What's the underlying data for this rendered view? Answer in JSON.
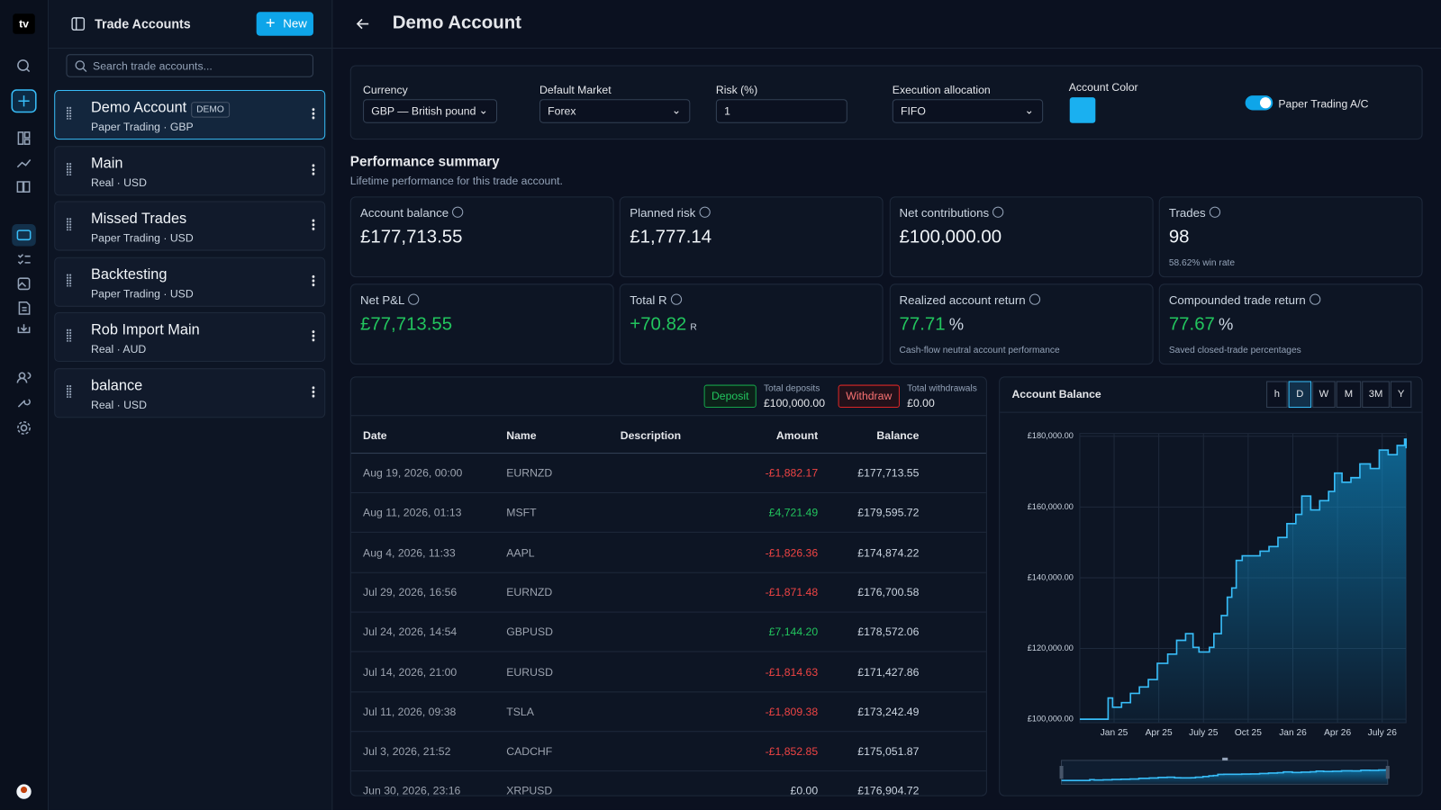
{
  "app": {
    "logo": "tv"
  },
  "accounts_panel": {
    "title": "Trade Accounts",
    "new_button": "New",
    "search_placeholder": "Search trade accounts...",
    "accounts": [
      {
        "name": "Demo Account",
        "badge": "DEMO",
        "meta": "Paper Trading · GBP",
        "selected": true
      },
      {
        "name": "Main",
        "meta": "Real · USD"
      },
      {
        "name": "Missed Trades",
        "meta": "Paper Trading · USD"
      },
      {
        "name": "Backtesting",
        "meta": "Paper Trading · USD"
      },
      {
        "name": "Rob Import Main",
        "meta": "Real · AUD"
      },
      {
        "name": "balance",
        "meta": "Real · USD"
      }
    ]
  },
  "header": {
    "title": "Demo Account"
  },
  "settings": {
    "currency": {
      "label": "Currency",
      "value": "GBP — British pound"
    },
    "default_market": {
      "label": "Default Market",
      "value": "Forex"
    },
    "risk": {
      "label": "Risk (%)",
      "value": "1"
    },
    "execution_allocation": {
      "label": "Execution allocation",
      "value": "FIFO"
    },
    "account_color": {
      "label": "Account Color",
      "color": "#1ab0f0"
    },
    "paper_trading": {
      "label": "Paper Trading A/C",
      "on": true
    }
  },
  "performance": {
    "title": "Performance summary",
    "subtitle": "Lifetime performance for this trade account.",
    "cards": [
      {
        "label": "Account balance",
        "value": "£177,713.55"
      },
      {
        "label": "Planned risk",
        "value": "£1,777.14"
      },
      {
        "label": "Net contributions",
        "value": "£100,000.00"
      },
      {
        "label": "Trades",
        "value": "98",
        "note": "58.62% win rate"
      },
      {
        "label": "Net P&L",
        "value": "£77,713.55",
        "color": "#22c55e"
      },
      {
        "label": "Total R",
        "value": "+70.82",
        "unit": "R",
        "color": "#22c55e"
      },
      {
        "label": "Realized account return",
        "value": "77.71",
        "unit": "%",
        "color": "#22c55e",
        "note": "Cash-flow neutral account performance"
      },
      {
        "label": "Compounded trade return",
        "value": "77.67",
        "unit": "%",
        "color": "#22c55e",
        "note": "Saved closed-trade percentages"
      }
    ]
  },
  "transactions": {
    "deposit_button": "Deposit",
    "total_deposits_label": "Total deposits",
    "total_deposits": "£100,000.00",
    "withdraw_button": "Withdraw",
    "total_withdrawals_label": "Total withdrawals",
    "total_withdrawals": "£0.00",
    "columns": [
      "Date",
      "Name",
      "Description",
      "Amount",
      "Balance"
    ],
    "rows": [
      {
        "date": "Aug 19, 2026, 00:00",
        "name": "EURNZD",
        "amount": "-£1,882.17",
        "balance": "£177,713.55"
      },
      {
        "date": "Aug 11, 2026, 01:13",
        "name": "MSFT",
        "amount": "£4,721.49",
        "balance": "£179,595.72"
      },
      {
        "date": "Aug 4, 2026, 11:33",
        "name": "AAPL",
        "amount": "-£1,826.36",
        "balance": "£174,874.22"
      },
      {
        "date": "Jul 29, 2026, 16:56",
        "name": "EURNZD",
        "amount": "-£1,871.48",
        "balance": "£176,700.58"
      },
      {
        "date": "Jul 24, 2026, 14:54",
        "name": "GBPUSD",
        "amount": "£7,144.20",
        "balance": "£178,572.06"
      },
      {
        "date": "Jul 14, 2026, 21:00",
        "name": "EURUSD",
        "amount": "-£1,814.63",
        "balance": "£171,427.86"
      },
      {
        "date": "Jul 11, 2026, 09:38",
        "name": "TSLA",
        "amount": "-£1,809.38",
        "balance": "£173,242.49"
      },
      {
        "date": "Jul 3, 2026, 21:52",
        "name": "CADCHF",
        "amount": "-£1,852.85",
        "balance": "£175,051.87"
      },
      {
        "date": "Jun 30, 2026, 23:16",
        "name": "XRPUSD",
        "amount": "£0.00",
        "balance": "£176,904.72"
      }
    ]
  },
  "chart_panel": {
    "ranges": [
      "h",
      "D",
      "W",
      "M",
      "3M",
      "Y"
    ],
    "active_range": "D"
  },
  "chart_data": {
    "type": "area",
    "title": "Account Balance",
    "color": "#38bdf8",
    "grid": true,
    "x": [
      -2.3,
      -0.8,
      -0.4,
      -0.1,
      0.5,
      1.1,
      1.7,
      2.3,
      2.9,
      3.6,
      4.2,
      4.8,
      5.3,
      5.7,
      6.4,
      6.7,
      7.2,
      7.6,
      7.9,
      8.2,
      8.6,
      9.1,
      9.8,
      10.4,
      11.0,
      11.6,
      12.2,
      12.6,
      13.2,
      13.8,
      14.4,
      14.8,
      15.3,
      15.9,
      16.5,
      17.2,
      17.8,
      18.4,
      19.0,
      19.5,
      19.6
    ],
    "values": [
      100000,
      100000,
      106000,
      103400,
      104700,
      107300,
      109100,
      111200,
      115800,
      118400,
      122300,
      124200,
      120300,
      119000,
      120300,
      124200,
      129300,
      134500,
      137100,
      144900,
      146200,
      146200,
      147500,
      148800,
      151400,
      155300,
      157900,
      163100,
      159200,
      161800,
      164400,
      169600,
      167000,
      168300,
      172200,
      170900,
      176100,
      174800,
      177400,
      179200,
      176600
    ],
    "xlim": [
      -2.3,
      19.6
    ],
    "xticks": [
      {
        "value": 0,
        "label": "Jan 25"
      },
      {
        "value": 3,
        "label": "Apr 25"
      },
      {
        "value": 6,
        "label": "July 25"
      },
      {
        "value": 9,
        "label": "Oct 25"
      },
      {
        "value": 12,
        "label": "Jan 26"
      },
      {
        "value": 15,
        "label": "Apr 26"
      },
      {
        "value": 18,
        "label": "July 26"
      }
    ],
    "ylim": [
      99000,
      180800
    ],
    "yticks": [
      {
        "value": 100000,
        "label": "£100,000.00"
      },
      {
        "value": 120000,
        "label": "£120,000.00"
      },
      {
        "value": 140000,
        "label": "£140,000.00"
      },
      {
        "value": 160000,
        "label": "£160,000.00"
      },
      {
        "value": 180000,
        "label": "£180,000.00"
      }
    ]
  }
}
